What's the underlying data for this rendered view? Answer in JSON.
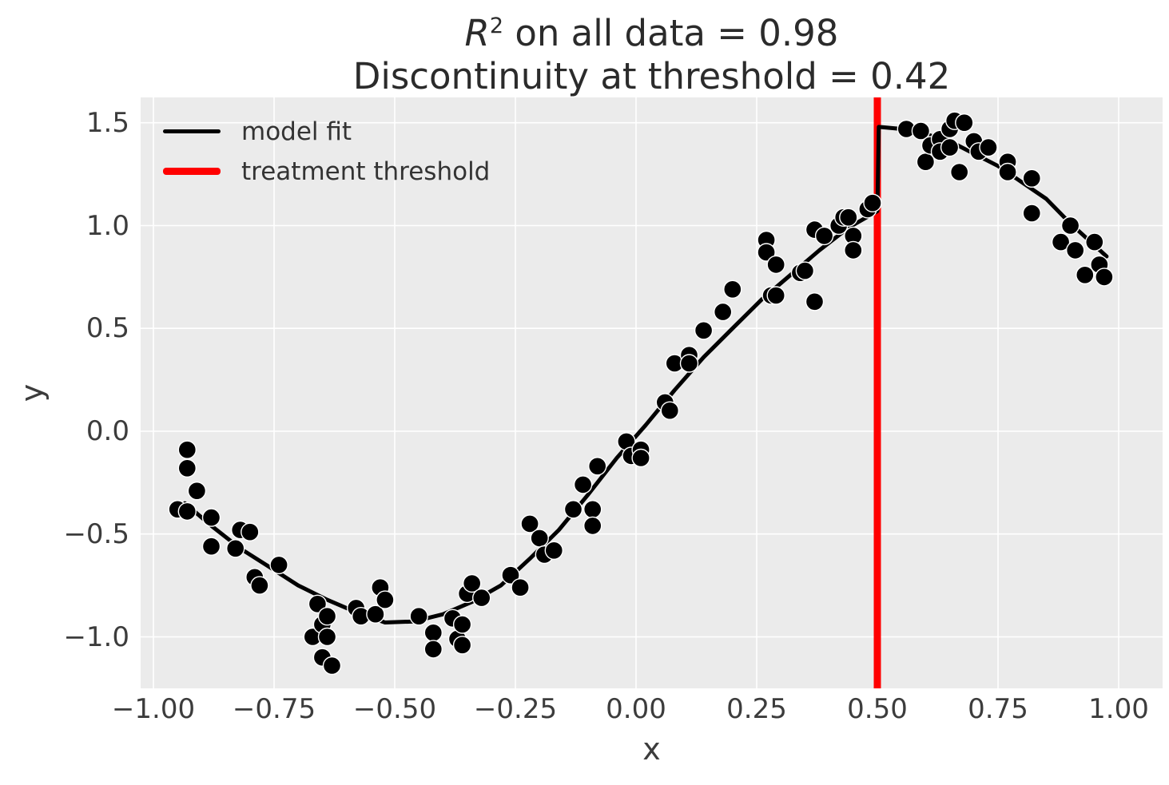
{
  "title": {
    "r_symbol": "R",
    "r_exponent": "2",
    "line1_rest": " on all data = 0.98",
    "line2": "Discontinuity at threshold = 0.42"
  },
  "axes": {
    "xlabel": "x",
    "ylabel": "y",
    "xticks": [
      {
        "v": -1.0,
        "label": "−1.00"
      },
      {
        "v": -0.75,
        "label": "−0.75"
      },
      {
        "v": -0.5,
        "label": "−0.50"
      },
      {
        "v": -0.25,
        "label": "−0.25"
      },
      {
        "v": 0.0,
        "label": "0.00"
      },
      {
        "v": 0.25,
        "label": "0.25"
      },
      {
        "v": 0.5,
        "label": "0.50"
      },
      {
        "v": 0.75,
        "label": "0.75"
      },
      {
        "v": 1.0,
        "label": "1.00"
      }
    ],
    "yticks": [
      {
        "v": 1.5,
        "label": "1.5"
      },
      {
        "v": 1.0,
        "label": "1.0"
      },
      {
        "v": 0.5,
        "label": "0.5"
      },
      {
        "v": 0.0,
        "label": "0.0"
      },
      {
        "v": -0.5,
        "label": "−0.5"
      },
      {
        "v": -1.0,
        "label": "−1.0"
      }
    ]
  },
  "legend": [
    {
      "label": "model fit",
      "color": "#000000",
      "thickness": 5
    },
    {
      "label": "treatment threshold",
      "color": "#ff0000",
      "thickness": 9
    }
  ],
  "colors": {
    "plot_bg": "#EBEBEB",
    "grid": "#FFFFFF",
    "scatter": "#000000",
    "scatter_edge": "#FFFFFF",
    "fit": "#000000",
    "threshold": "#FF0000",
    "tick_text": "#3c3c3c",
    "title_text": "#2b2b2b"
  },
  "chart_data": {
    "type": "scatter",
    "title": "R^2 on all data = 0.98\nDiscontinuity at threshold = 0.42",
    "xlabel": "x",
    "ylabel": "y",
    "grid": true,
    "legend_position": "upper left",
    "r_squared": 0.98,
    "discontinuity": 0.42,
    "threshold_x": 0.5,
    "xlim": [
      -1.0265,
      1.091
    ],
    "ylim": [
      -1.2505,
      1.6233
    ],
    "points": [
      [
        -0.95,
        -0.38
      ],
      [
        -0.93,
        -0.39
      ],
      [
        -0.93,
        -0.09
      ],
      [
        -0.93,
        -0.18
      ],
      [
        -0.91,
        -0.29
      ],
      [
        -0.88,
        -0.42
      ],
      [
        -0.88,
        -0.56
      ],
      [
        -0.83,
        -0.57
      ],
      [
        -0.82,
        -0.48
      ],
      [
        -0.8,
        -0.49
      ],
      [
        -0.79,
        -0.71
      ],
      [
        -0.78,
        -0.75
      ],
      [
        -0.74,
        -0.65
      ],
      [
        -0.67,
        -1.0
      ],
      [
        -0.66,
        -0.84
      ],
      [
        -0.65,
        -0.94
      ],
      [
        -0.65,
        -1.1
      ],
      [
        -0.64,
        -0.9
      ],
      [
        -0.64,
        -1.0
      ],
      [
        -0.63,
        -1.14
      ],
      [
        -0.58,
        -0.86
      ],
      [
        -0.57,
        -0.9
      ],
      [
        -0.54,
        -0.89
      ],
      [
        -0.53,
        -0.76
      ],
      [
        -0.52,
        -0.82
      ],
      [
        -0.45,
        -0.9
      ],
      [
        -0.42,
        -0.98
      ],
      [
        -0.42,
        -1.06
      ],
      [
        -0.38,
        -0.91
      ],
      [
        -0.37,
        -1.01
      ],
      [
        -0.36,
        -0.94
      ],
      [
        -0.36,
        -1.04
      ],
      [
        -0.35,
        -0.79
      ],
      [
        -0.34,
        -0.74
      ],
      [
        -0.32,
        -0.81
      ],
      [
        -0.26,
        -0.7
      ],
      [
        -0.24,
        -0.76
      ],
      [
        -0.22,
        -0.45
      ],
      [
        -0.2,
        -0.52
      ],
      [
        -0.19,
        -0.6
      ],
      [
        -0.17,
        -0.58
      ],
      [
        -0.13,
        -0.38
      ],
      [
        -0.11,
        -0.26
      ],
      [
        -0.09,
        -0.38
      ],
      [
        -0.09,
        -0.46
      ],
      [
        -0.08,
        -0.17
      ],
      [
        -0.02,
        -0.05
      ],
      [
        -0.01,
        -0.12
      ],
      [
        0.01,
        -0.09
      ],
      [
        0.01,
        -0.13
      ],
      [
        0.06,
        0.14
      ],
      [
        0.07,
        0.1
      ],
      [
        0.08,
        0.33
      ],
      [
        0.11,
        0.37
      ],
      [
        0.11,
        0.33
      ],
      [
        0.14,
        0.49
      ],
      [
        0.18,
        0.58
      ],
      [
        0.2,
        0.69
      ],
      [
        0.27,
        0.93
      ],
      [
        0.27,
        0.87
      ],
      [
        0.28,
        0.66
      ],
      [
        0.29,
        0.81
      ],
      [
        0.29,
        0.66
      ],
      [
        0.34,
        0.77
      ],
      [
        0.35,
        0.78
      ],
      [
        0.37,
        0.98
      ],
      [
        0.37,
        0.63
      ],
      [
        0.39,
        0.95
      ],
      [
        0.42,
        1.0
      ],
      [
        0.43,
        1.04
      ],
      [
        0.44,
        1.04
      ],
      [
        0.45,
        0.95
      ],
      [
        0.45,
        0.88
      ],
      [
        0.48,
        1.08
      ],
      [
        0.49,
        1.11
      ],
      [
        0.56,
        1.47
      ],
      [
        0.59,
        1.46
      ],
      [
        0.6,
        1.31
      ],
      [
        0.61,
        1.39
      ],
      [
        0.63,
        1.42
      ],
      [
        0.63,
        1.36
      ],
      [
        0.65,
        1.47
      ],
      [
        0.65,
        1.38
      ],
      [
        0.66,
        1.51
      ],
      [
        0.67,
        1.26
      ],
      [
        0.68,
        1.5
      ],
      [
        0.7,
        1.41
      ],
      [
        0.71,
        1.36
      ],
      [
        0.73,
        1.38
      ],
      [
        0.77,
        1.31
      ],
      [
        0.77,
        1.26
      ],
      [
        0.82,
        1.23
      ],
      [
        0.82,
        1.06
      ],
      [
        0.88,
        0.92
      ],
      [
        0.9,
        1.0
      ],
      [
        0.91,
        0.88
      ],
      [
        0.93,
        0.76
      ],
      [
        0.95,
        0.92
      ],
      [
        0.96,
        0.81
      ],
      [
        0.97,
        0.75
      ]
    ],
    "fit_line_left": [
      [
        -0.935,
        -0.35
      ],
      [
        -0.88,
        -0.46
      ],
      [
        -0.82,
        -0.57
      ],
      [
        -0.76,
        -0.66
      ],
      [
        -0.7,
        -0.75
      ],
      [
        -0.64,
        -0.82
      ],
      [
        -0.58,
        -0.88
      ],
      [
        -0.52,
        -0.93
      ],
      [
        -0.46,
        -0.925
      ],
      [
        -0.4,
        -0.89
      ],
      [
        -0.34,
        -0.83
      ],
      [
        -0.28,
        -0.75
      ],
      [
        -0.22,
        -0.62
      ],
      [
        -0.16,
        -0.48
      ],
      [
        -0.1,
        -0.31
      ],
      [
        -0.04,
        -0.13
      ],
      [
        0.02,
        0.03
      ],
      [
        0.08,
        0.2
      ],
      [
        0.14,
        0.36
      ],
      [
        0.2,
        0.5
      ],
      [
        0.26,
        0.64
      ],
      [
        0.32,
        0.76
      ],
      [
        0.38,
        0.88
      ],
      [
        0.44,
        0.99
      ],
      [
        0.5,
        1.07
      ]
    ],
    "fit_line_right": [
      [
        0.503,
        1.48
      ],
      [
        0.55,
        1.47
      ],
      [
        0.6,
        1.445
      ],
      [
        0.65,
        1.41
      ],
      [
        0.7,
        1.35
      ],
      [
        0.75,
        1.29
      ],
      [
        0.8,
        1.21
      ],
      [
        0.85,
        1.13
      ],
      [
        0.9,
        1.01
      ],
      [
        0.94,
        0.925
      ],
      [
        0.975,
        0.85
      ]
    ]
  }
}
